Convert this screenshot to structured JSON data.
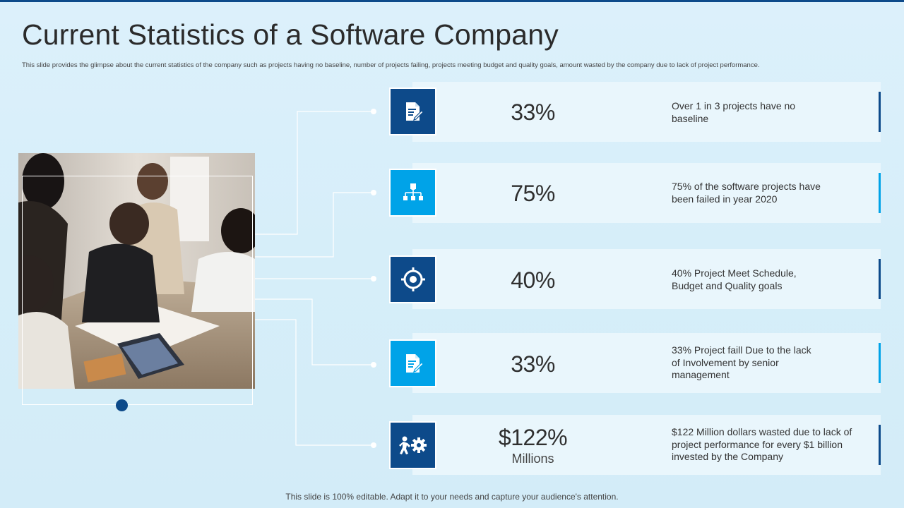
{
  "slide": {
    "title": "Current Statistics of a Software Company",
    "subtitle": "This slide provides the glimpse about the current statistics of the company such as projects having no baseline, number of projects failing, projects meeting budget and quality goals, amount wasted by the company due to lack of project performance.",
    "footer": "This slide is 100% editable. Adapt it to your needs and capture your audience's attention."
  },
  "colors": {
    "dark_blue": "#0d4a8a",
    "light_blue": "#00a3e8",
    "card_bg": "#e9f6fc",
    "page_bg": "#d9effa"
  },
  "photo": {
    "icon": "team-meeting-photo"
  },
  "stats": [
    {
      "value": "33%",
      "sub": "",
      "desc_lines": [
        "Over 1 in 3 projects have no",
        "baseline"
      ],
      "icon": "document-edit-icon",
      "color": "#0d4a8a"
    },
    {
      "value": "75%",
      "sub": "",
      "desc_lines": [
        "75% of the software projects have",
        "been failed in year 2020"
      ],
      "icon": "hierarchy-icon",
      "color": "#00a3e8"
    },
    {
      "value": "40%",
      "sub": "",
      "desc_lines": [
        "40% Project Meet Schedule,",
        "Budget and Quality goals"
      ],
      "icon": "target-icon",
      "color": "#0d4a8a"
    },
    {
      "value": "33%",
      "sub": "",
      "desc_lines": [
        "33% Project faill Due to the lack",
        "of Involvement by senior",
        "management"
      ],
      "icon": "document-edit-icon",
      "color": "#00a3e8"
    },
    {
      "value": "$122%",
      "sub": "Millions",
      "desc_lines": [
        "$122 Million dollars wasted due to lack of",
        "project performance for every $1 billion",
        "invested by the Company"
      ],
      "icon": "person-gear-icon",
      "color": "#0d4a8a"
    }
  ]
}
